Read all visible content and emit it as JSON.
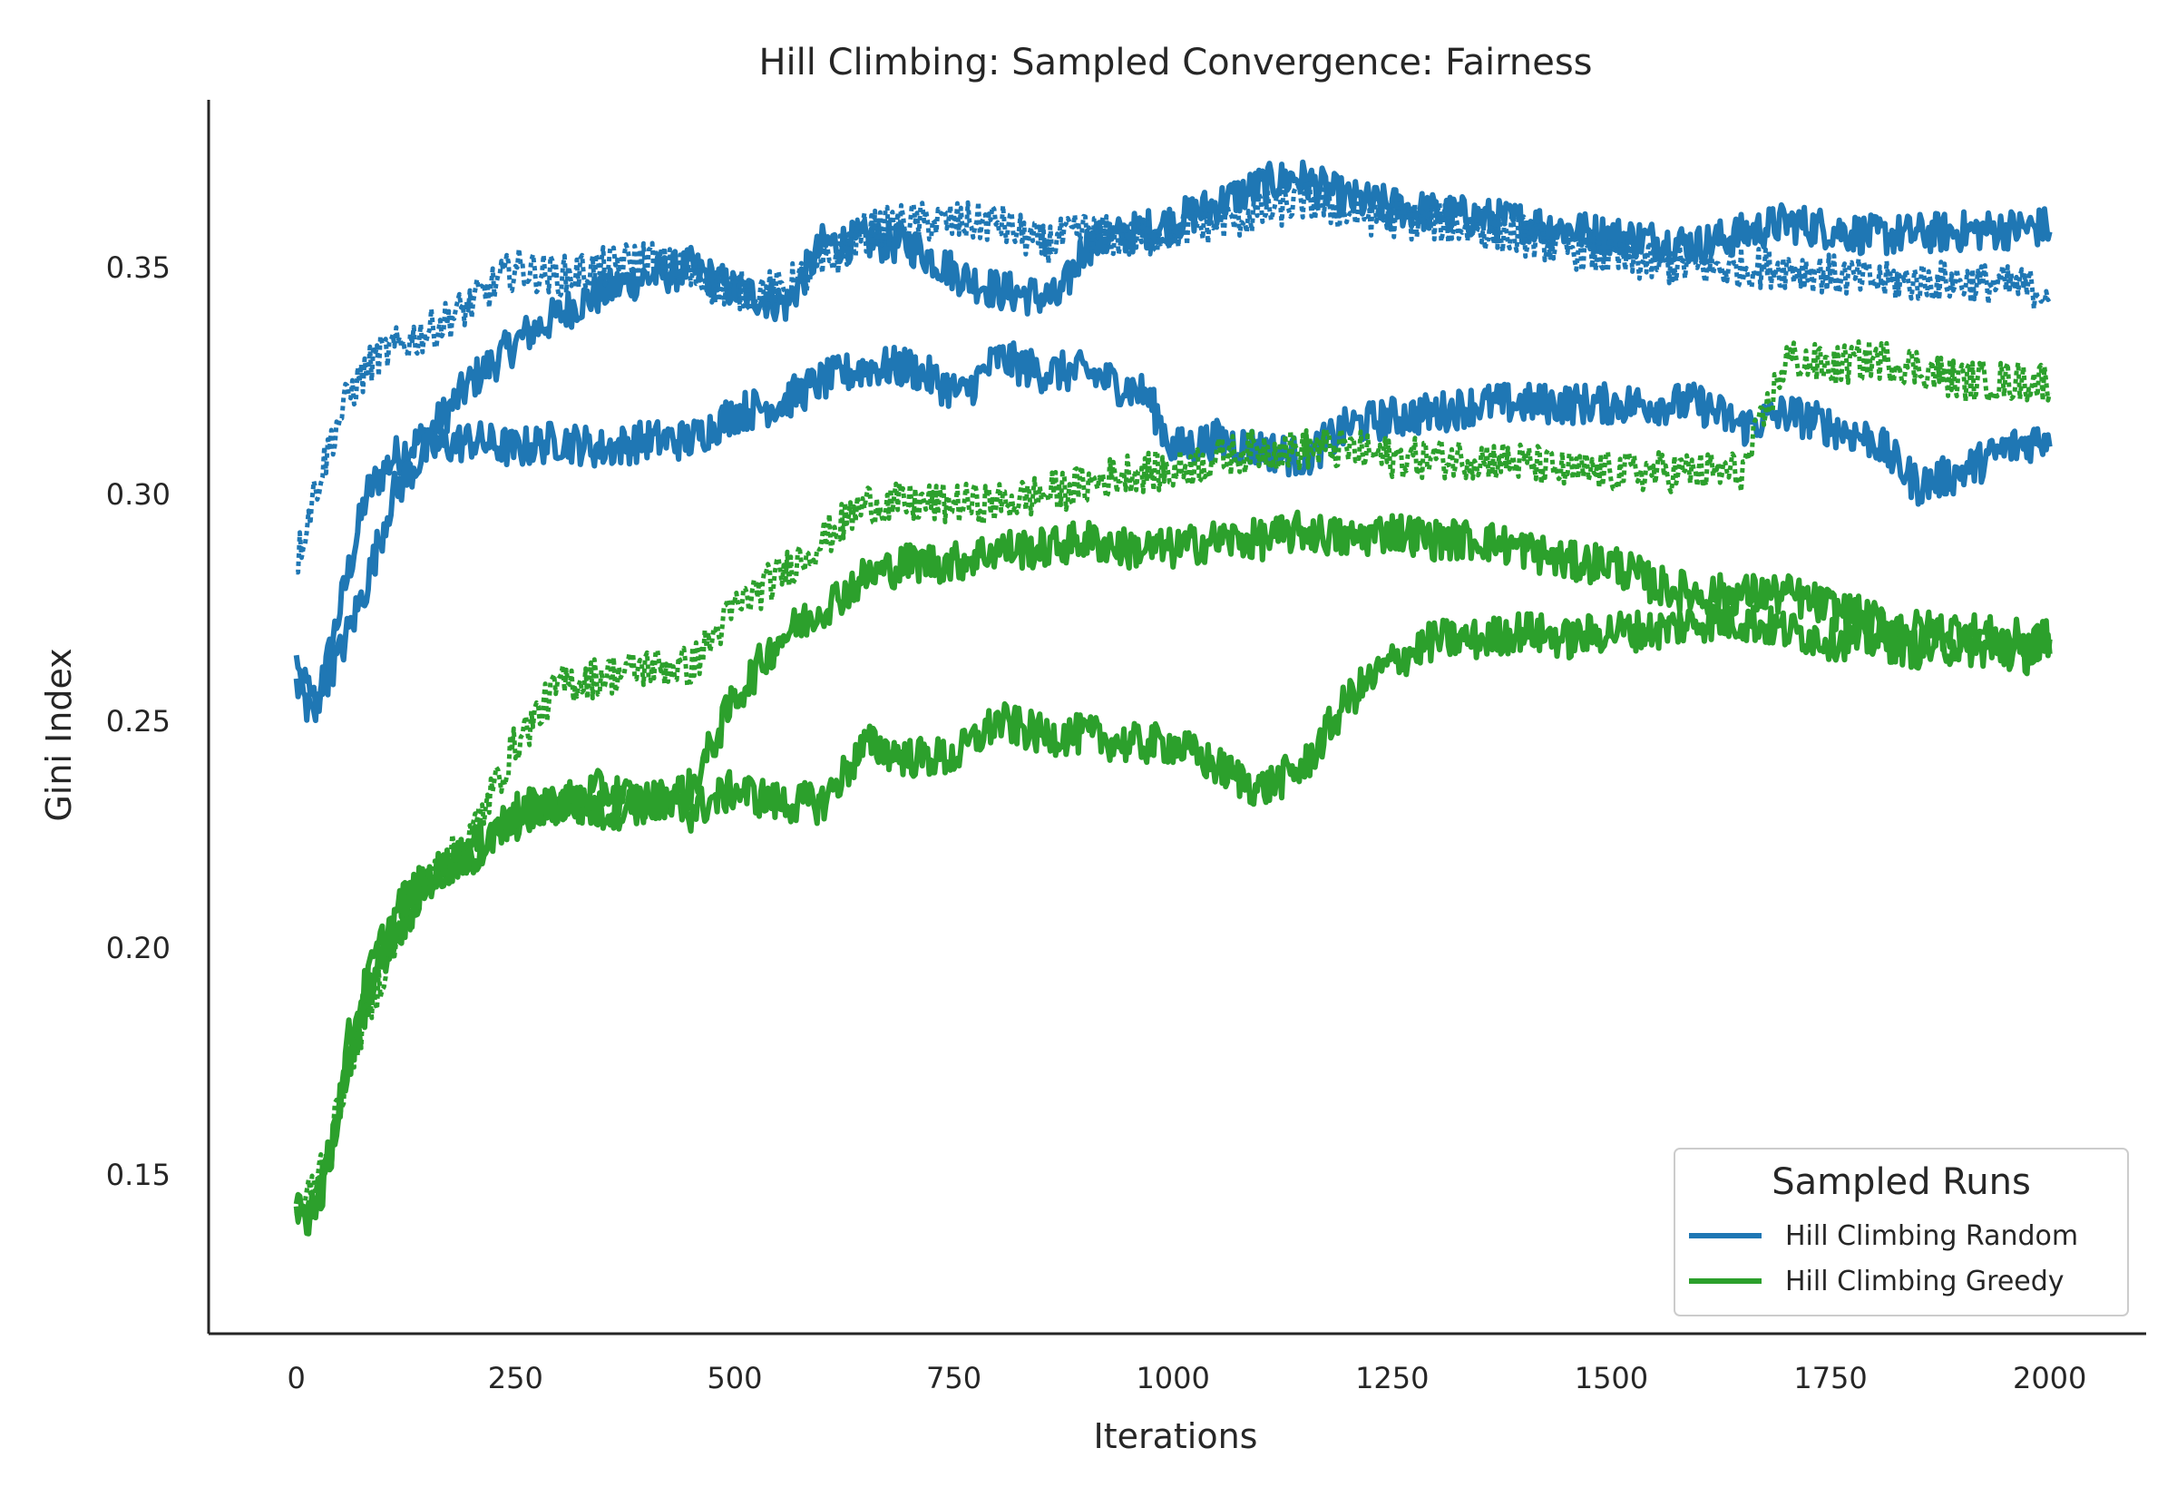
{
  "chart_data": {
    "type": "line",
    "title": "Hill Climbing: Sampled Convergence: Fairness",
    "xlabel": "Iterations",
    "ylabel": "Gini Index",
    "xlim": [
      -100,
      2110
    ],
    "ylim": [
      0.115,
      0.387
    ],
    "xticks": [
      0,
      250,
      500,
      750,
      1000,
      1250,
      1500,
      1750,
      2000
    ],
    "yticks": [
      0.15,
      0.2,
      0.25,
      0.3,
      0.35
    ],
    "grid": false,
    "legend": {
      "title": "Sampled Runs",
      "position": "bottom-right",
      "entries": [
        {
          "label": "Hill Climbing Random",
          "color": "#1f77b4"
        },
        {
          "label": "Hill Climbing Greedy",
          "color": "#2ca02c"
        }
      ]
    },
    "noise_amplitude": 0.0045,
    "series": [
      {
        "name": "Hill Climbing Random",
        "color": "#1f77b4",
        "style": "solid",
        "x": [
          0,
          20,
          50,
          80,
          110,
          150,
          200,
          260,
          320,
          380,
          450,
          500,
          560,
          600,
          650,
          700,
          760,
          800,
          870,
          900,
          1000,
          1100,
          1140,
          1200,
          1300,
          1400,
          1500,
          1600,
          1700,
          1800,
          1900,
          2000
        ],
        "y": [
          0.258,
          0.25,
          0.275,
          0.3,
          0.308,
          0.313,
          0.325,
          0.335,
          0.342,
          0.347,
          0.35,
          0.345,
          0.342,
          0.355,
          0.356,
          0.355,
          0.348,
          0.345,
          0.343,
          0.355,
          0.36,
          0.368,
          0.37,
          0.365,
          0.362,
          0.36,
          0.357,
          0.355,
          0.36,
          0.357,
          0.358,
          0.359
        ]
      },
      {
        "name": "Hill Climbing Random",
        "color": "#1f77b4",
        "style": "solid",
        "x": [
          0,
          20,
          50,
          80,
          110,
          150,
          200,
          250,
          300,
          350,
          400,
          450,
          500,
          550,
          600,
          650,
          700,
          760,
          800,
          850,
          900,
          970,
          1000,
          1050,
          1100,
          1150,
          1200,
          1250,
          1300,
          1350,
          1400,
          1500,
          1600,
          1650,
          1700,
          1800,
          1850,
          1900,
          1950,
          2000
        ],
        "y": [
          0.262,
          0.255,
          0.265,
          0.28,
          0.3,
          0.31,
          0.312,
          0.31,
          0.312,
          0.31,
          0.312,
          0.312,
          0.318,
          0.32,
          0.325,
          0.328,
          0.328,
          0.322,
          0.33,
          0.327,
          0.327,
          0.322,
          0.31,
          0.312,
          0.31,
          0.308,
          0.315,
          0.317,
          0.318,
          0.32,
          0.32,
          0.32,
          0.32,
          0.315,
          0.318,
          0.312,
          0.302,
          0.305,
          0.31,
          0.313
        ]
      },
      {
        "name": "Hill Climbing Random",
        "color": "#1f77b4",
        "style": "dotted",
        "x": [
          0,
          20,
          40,
          60,
          90,
          120,
          160,
          200,
          250,
          300,
          350,
          400,
          450,
          500,
          550,
          600,
          650,
          700,
          750,
          800,
          850,
          900,
          950,
          1000,
          1050,
          1100,
          1150,
          1200,
          1300,
          1400,
          1500,
          1600,
          1700,
          1800,
          1900,
          2000
        ],
        "y": [
          0.285,
          0.3,
          0.312,
          0.322,
          0.33,
          0.333,
          0.337,
          0.342,
          0.35,
          0.348,
          0.35,
          0.352,
          0.348,
          0.345,
          0.345,
          0.35,
          0.358,
          0.36,
          0.36,
          0.36,
          0.355,
          0.358,
          0.356,
          0.358,
          0.36,
          0.362,
          0.365,
          0.362,
          0.36,
          0.357,
          0.352,
          0.35,
          0.35,
          0.347,
          0.347,
          0.345
        ]
      },
      {
        "name": "Hill Climbing Greedy",
        "color": "#2ca02c",
        "style": "solid",
        "x": [
          0,
          20,
          40,
          60,
          90,
          120,
          150,
          200,
          250,
          300,
          350,
          400,
          450,
          500,
          550,
          600,
          650,
          700,
          750,
          800,
          850,
          900,
          950,
          1000,
          1050,
          1100,
          1150,
          1200,
          1250,
          1300,
          1350,
          1400,
          1450,
          1500,
          1550,
          1600,
          1650,
          1700,
          1750,
          1800,
          1850,
          1900,
          1950,
          2000
        ],
        "y": [
          0.142,
          0.14,
          0.155,
          0.175,
          0.195,
          0.205,
          0.215,
          0.22,
          0.228,
          0.232,
          0.23,
          0.232,
          0.23,
          0.235,
          0.232,
          0.232,
          0.245,
          0.242,
          0.242,
          0.25,
          0.247,
          0.247,
          0.245,
          0.245,
          0.24,
          0.235,
          0.24,
          0.255,
          0.263,
          0.268,
          0.268,
          0.27,
          0.268,
          0.27,
          0.27,
          0.272,
          0.272,
          0.27,
          0.268,
          0.268,
          0.266,
          0.267,
          0.265,
          0.265
        ]
      },
      {
        "name": "Hill Climbing Greedy",
        "color": "#2ca02c",
        "style": "solid",
        "x": [
          0,
          20,
          40,
          60,
          90,
          120,
          150,
          200,
          250,
          300,
          350,
          400,
          450,
          500,
          550,
          600,
          650,
          700,
          750,
          800,
          850,
          900,
          950,
          1000,
          1050,
          1100,
          1150,
          1200,
          1250,
          1300,
          1350,
          1400,
          1450,
          1500,
          1550,
          1600,
          1650,
          1700,
          1750,
          1800,
          1850,
          1900,
          1950,
          2000
        ],
        "y": [
          0.14,
          0.145,
          0.155,
          0.18,
          0.198,
          0.21,
          0.215,
          0.222,
          0.23,
          0.232,
          0.235,
          0.232,
          0.235,
          0.255,
          0.268,
          0.275,
          0.282,
          0.285,
          0.285,
          0.288,
          0.288,
          0.29,
          0.288,
          0.288,
          0.29,
          0.29,
          0.292,
          0.29,
          0.292,
          0.29,
          0.29,
          0.288,
          0.285,
          0.285,
          0.28,
          0.278,
          0.278,
          0.278,
          0.275,
          0.272,
          0.27,
          0.27,
          0.268,
          0.268
        ]
      },
      {
        "name": "Hill Climbing Greedy",
        "color": "#2ca02c",
        "style": "dotted",
        "x": [
          0,
          20,
          40,
          60,
          90,
          120,
          150,
          200,
          250,
          300,
          350,
          400,
          450,
          500,
          550,
          600,
          650,
          700,
          750,
          800,
          850,
          900,
          950,
          1000,
          1050,
          1100,
          1150,
          1200,
          1250,
          1300,
          1350,
          1400,
          1450,
          1500,
          1550,
          1600,
          1650,
          1700,
          1750,
          1800,
          1850,
          1900,
          1950,
          2000
        ],
        "y": [
          0.14,
          0.148,
          0.158,
          0.175,
          0.19,
          0.205,
          0.215,
          0.225,
          0.245,
          0.258,
          0.26,
          0.262,
          0.262,
          0.275,
          0.282,
          0.29,
          0.298,
          0.298,
          0.298,
          0.298,
          0.3,
          0.302,
          0.305,
          0.305,
          0.308,
          0.31,
          0.31,
          0.31,
          0.308,
          0.308,
          0.308,
          0.307,
          0.305,
          0.305,
          0.305,
          0.305,
          0.305,
          0.33,
          0.328,
          0.33,
          0.328,
          0.325,
          0.325,
          0.325
        ]
      }
    ]
  }
}
